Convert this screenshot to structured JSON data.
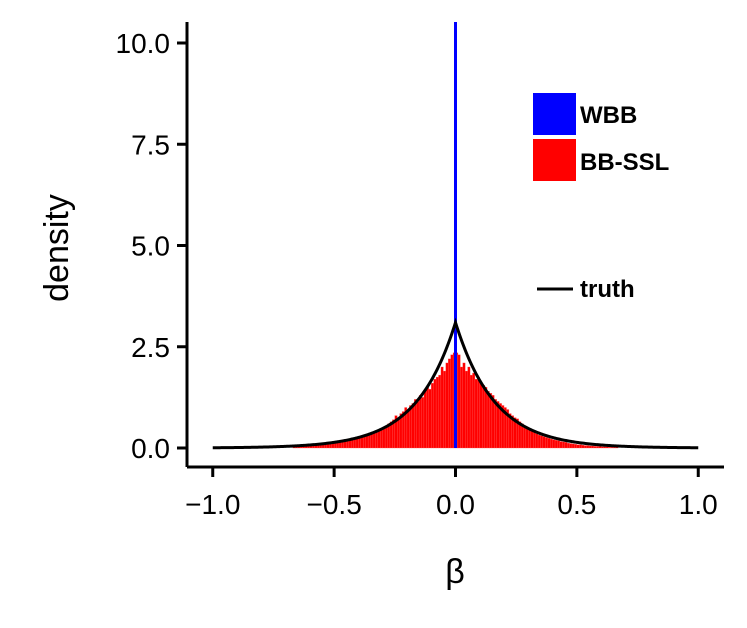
{
  "chart_data": {
    "type": "histogram",
    "xlabel": "β",
    "ylabel": "density",
    "xlim": [
      -1.1,
      1.1
    ],
    "ylim": [
      -0.5,
      10.5
    ],
    "x_ticks": [
      -1.0,
      -0.5,
      0.0,
      0.5,
      1.0
    ],
    "x_tick_labels": [
      "−1.0",
      "−0.5",
      "0.0",
      "0.5",
      "1.0"
    ],
    "y_ticks": [
      0.0,
      2.5,
      5.0,
      7.5,
      10.0
    ],
    "y_tick_labels": [
      "0.0",
      "2.5",
      "5.0",
      "7.5",
      "10.0"
    ],
    "grid": false,
    "legend_position": "right",
    "series": [
      {
        "name": "WBB",
        "kind": "vertical-line",
        "x": 0.0,
        "color": "#0000ff"
      },
      {
        "name": "BB-SSL",
        "kind": "histogram",
        "color": "#ff0000",
        "bin_width": 0.01,
        "bin_centers": [
          -0.665,
          -0.655,
          -0.645,
          -0.635,
          -0.625,
          -0.615,
          -0.605,
          -0.595,
          -0.585,
          -0.575,
          -0.565,
          -0.555,
          -0.545,
          -0.535,
          -0.525,
          -0.515,
          -0.505,
          -0.495,
          -0.485,
          -0.475,
          -0.465,
          -0.455,
          -0.445,
          -0.435,
          -0.425,
          -0.415,
          -0.405,
          -0.395,
          -0.385,
          -0.375,
          -0.365,
          -0.355,
          -0.345,
          -0.335,
          -0.325,
          -0.315,
          -0.305,
          -0.295,
          -0.285,
          -0.275,
          -0.265,
          -0.255,
          -0.245,
          -0.235,
          -0.225,
          -0.215,
          -0.205,
          -0.195,
          -0.185,
          -0.175,
          -0.165,
          -0.155,
          -0.145,
          -0.135,
          -0.125,
          -0.115,
          -0.105,
          -0.095,
          -0.085,
          -0.075,
          -0.065,
          -0.055,
          -0.045,
          -0.035,
          -0.025,
          -0.015,
          -0.005,
          0.005,
          0.015,
          0.025,
          0.035,
          0.045,
          0.055,
          0.065,
          0.075,
          0.085,
          0.095,
          0.105,
          0.115,
          0.125,
          0.135,
          0.145,
          0.155,
          0.165,
          0.175,
          0.185,
          0.195,
          0.205,
          0.215,
          0.225,
          0.235,
          0.245,
          0.255,
          0.265,
          0.275,
          0.285,
          0.295,
          0.305,
          0.315,
          0.325,
          0.335,
          0.345,
          0.355,
          0.365,
          0.375,
          0.385,
          0.395,
          0.405,
          0.415,
          0.425,
          0.435,
          0.445,
          0.455,
          0.465,
          0.475,
          0.485,
          0.495,
          0.505,
          0.515,
          0.525,
          0.535,
          0.545,
          0.555,
          0.565,
          0.575,
          0.585,
          0.595,
          0.605,
          0.615,
          0.625,
          0.635,
          0.645,
          0.655,
          0.665
        ],
        "values": [
          0.05,
          0.03,
          0.06,
          0.04,
          0.07,
          0.05,
          0.08,
          0.06,
          0.09,
          0.08,
          0.1,
          0.09,
          0.12,
          0.1,
          0.14,
          0.12,
          0.16,
          0.15,
          0.18,
          0.17,
          0.2,
          0.19,
          0.22,
          0.21,
          0.25,
          0.24,
          0.28,
          0.26,
          0.3,
          0.28,
          0.32,
          0.35,
          0.38,
          0.4,
          0.42,
          0.45,
          0.48,
          0.5,
          0.55,
          0.6,
          0.65,
          0.7,
          0.8,
          0.75,
          0.85,
          0.9,
          1.0,
          0.95,
          1.05,
          1.1,
          1.2,
          1.15,
          1.3,
          1.25,
          1.4,
          1.5,
          1.45,
          1.6,
          1.7,
          1.75,
          1.8,
          2.0,
          1.9,
          2.1,
          2.2,
          2.3,
          2.35,
          2.35,
          2.3,
          2.0,
          2.1,
          1.9,
          2.0,
          1.8,
          1.85,
          1.7,
          1.75,
          1.6,
          1.55,
          1.5,
          1.4,
          1.35,
          1.3,
          1.2,
          1.15,
          1.1,
          1.05,
          1.0,
          0.95,
          0.85,
          0.8,
          0.75,
          0.72,
          0.65,
          0.6,
          0.55,
          0.5,
          0.45,
          0.42,
          0.4,
          0.35,
          0.32,
          0.3,
          0.28,
          0.26,
          0.24,
          0.22,
          0.2,
          0.19,
          0.18,
          0.16,
          0.15,
          0.14,
          0.12,
          0.11,
          0.1,
          0.09,
          0.08,
          0.08,
          0.07,
          0.06,
          0.06,
          0.05,
          0.05,
          0.04,
          0.04,
          0.04,
          0.03,
          0.03,
          0.03,
          0.02,
          0.02,
          0.02,
          0.02
        ]
      },
      {
        "name": "truth",
        "kind": "line",
        "color": "#000000",
        "x_range": [
          -1.0,
          1.0
        ],
        "peak": 3.1
      }
    ]
  }
}
